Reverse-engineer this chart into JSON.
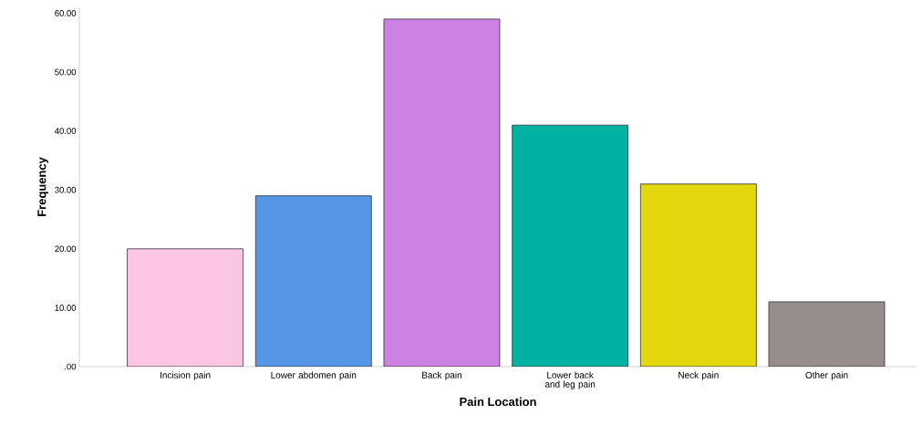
{
  "chart_data": {
    "type": "bar",
    "xlabel": "Pain Location",
    "ylabel": "Frequency",
    "categories": [
      "Incision pain",
      "Lower abdomen pain",
      "Back pain",
      "Lower back and leg pain",
      "Neck pain",
      "Other pain"
    ],
    "values": [
      20,
      29,
      59,
      41,
      31,
      11
    ],
    "colors": [
      "#fcc5e3",
      "#5596e6",
      "#cb82e3",
      "#00b2a1",
      "#e3d80e",
      "#958e8c"
    ],
    "ylim": [
      0,
      61
    ],
    "yticks": [
      {
        "value": 0,
        "label": ".00"
      },
      {
        "value": 10,
        "label": "10.00"
      },
      {
        "value": 20,
        "label": "20.00"
      },
      {
        "value": 30,
        "label": "30.00"
      },
      {
        "value": 40,
        "label": "40.00"
      },
      {
        "value": 50,
        "label": "50.00"
      },
      {
        "value": 60,
        "label": "60.00"
      }
    ],
    "grid": false
  }
}
